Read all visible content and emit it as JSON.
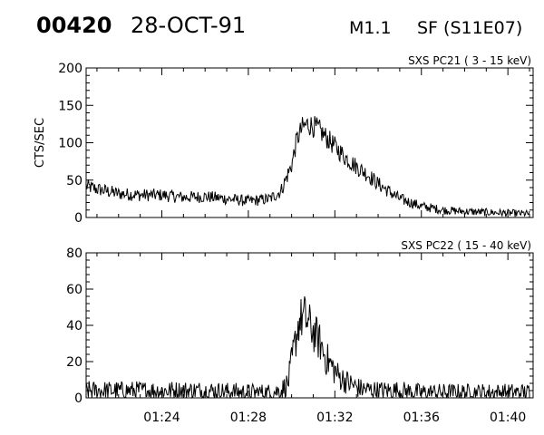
{
  "header": {
    "event_id": "00420",
    "date": "28-OCT-91",
    "flare_class": "M1.1",
    "location": "SF (S11E07)"
  },
  "chart_data": [
    {
      "type": "line",
      "title": "SXS PC21  (  3 - 15 keV)",
      "ylabel": "CTS/SEC",
      "xlabel": "",
      "xlim": [
        "01:20:30",
        "01:41:10"
      ],
      "ylim": [
        0,
        200
      ],
      "yticks": [
        "0",
        "50",
        "100",
        "150",
        "200"
      ],
      "grid": false,
      "x": [
        "01:20:30",
        "01:21:00",
        "01:22:00",
        "01:23:00",
        "01:24:00",
        "01:25:00",
        "01:26:00",
        "01:27:00",
        "01:28:00",
        "01:29:00",
        "01:29:30",
        "01:30:00",
        "01:30:15",
        "01:30:30",
        "01:30:45",
        "01:31:00",
        "01:31:15",
        "01:31:30",
        "01:32:00",
        "01:32:30",
        "01:33:00",
        "01:33:30",
        "01:34:00",
        "01:34:30",
        "01:35:00",
        "01:36:00",
        "01:37:00",
        "01:38:00",
        "01:39:00",
        "01:40:00",
        "01:41:00"
      ],
      "series": [
        {
          "values": [
            42,
            38,
            32,
            30,
            30,
            27,
            28,
            25,
            22,
            25,
            35,
            70,
            105,
            120,
            125,
            122,
            118,
            110,
            95,
            80,
            68,
            58,
            45,
            35,
            25,
            15,
            10,
            8,
            7,
            6,
            5
          ]
        }
      ]
    },
    {
      "type": "line",
      "title": "SXS PC22  ( 15 - 40 keV)",
      "ylabel": "",
      "xlabel": "",
      "xlim": [
        "01:20:30",
        "01:41:10"
      ],
      "ylim": [
        0,
        80
      ],
      "yticks": [
        "0",
        "20",
        "40",
        "60",
        "80"
      ],
      "xticks": [
        "01:24",
        "01:28",
        "01:32",
        "01:36",
        "01:40"
      ],
      "grid": false,
      "x": [
        "01:20:30",
        "01:22:00",
        "01:24:00",
        "01:26:00",
        "01:28:00",
        "01:29:00",
        "01:29:30",
        "01:29:50",
        "01:30:05",
        "01:30:20",
        "01:30:35",
        "01:30:50",
        "01:31:05",
        "01:31:20",
        "01:31:35",
        "01:31:50",
        "01:32:10",
        "01:32:40",
        "01:33:10",
        "01:34:00",
        "01:35:00",
        "01:36:00",
        "01:38:00",
        "01:40:00",
        "01:41:00"
      ],
      "series": [
        {
          "values": [
            4,
            4,
            4,
            4,
            3,
            3,
            4,
            8,
            25,
            42,
            45,
            40,
            35,
            30,
            22,
            18,
            12,
            8,
            5,
            4,
            4,
            3,
            3,
            3,
            3
          ]
        }
      ]
    }
  ]
}
